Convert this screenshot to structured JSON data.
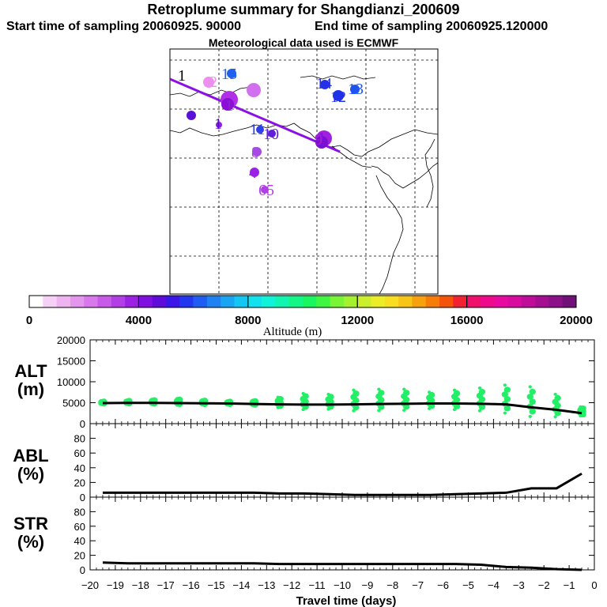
{
  "header": {
    "title": "Retroplume summary for Shangdianzi_200609",
    "start_label": "Start time of sampling 20060925. 90000",
    "end_label": "End time of sampling 20060925.120000",
    "met_label": "Meteorological data used is ECMWF"
  },
  "colorbar": {
    "tick_labels": [
      "0",
      "4000",
      "8000",
      "12000",
      "16000",
      "20000"
    ],
    "axis_label": "Altitude (m)",
    "colors": [
      "#ffffff",
      "#f6d0f6",
      "#efb3ef",
      "#e495ee",
      "#d878ec",
      "#c75ae9",
      "#b33ee6",
      "#9b22e3",
      "#8010e0",
      "#5f0bd9",
      "#3a17e8",
      "#2238f0",
      "#1f5cf2",
      "#1f82f3",
      "#18a6f4",
      "#12c8f2",
      "#10e3ee",
      "#0ff3d8",
      "#10f6b0",
      "#12f785",
      "#18f660",
      "#3ff740",
      "#78f534",
      "#a4f22e",
      "#cbef2a",
      "#eced26",
      "#f8de1e",
      "#f8c416",
      "#f8a10e",
      "#f87c08",
      "#f5520a",
      "#f22233",
      "#f00f6a",
      "#ef0a8b",
      "#e80aa0",
      "#d80a9f",
      "#c00c9a",
      "#a60e91",
      "#8c1088",
      "#701078"
    ]
  },
  "map": {
    "labels": [
      {
        "text": "1",
        "color": "#000000"
      },
      {
        "text": "2",
        "color": "#ee8fee"
      },
      {
        "text": "15",
        "color": "#2060ef"
      },
      {
        "text": "1",
        "color": "#d070ee"
      },
      {
        "text": "14",
        "color": "#2530e8"
      },
      {
        "text": "13",
        "color": "#1e55ee"
      },
      {
        "text": "12",
        "color": "#2030e8"
      },
      {
        "text": "1",
        "color": "#9020d8"
      },
      {
        "text": "1",
        "color": "#7a10d0"
      },
      {
        "text": "1",
        "color": "#8a10d8"
      },
      {
        "text": "1",
        "color": "#5010c8"
      },
      {
        "text": "11",
        "color": "#3040e8"
      },
      {
        "text": "10",
        "color": "#6020d8"
      },
      {
        "text": "9",
        "color": "#a020e0"
      },
      {
        "text": "8",
        "color": "#a64ae6"
      },
      {
        "text": "4",
        "color": "#9b22e3"
      },
      {
        "text": "65",
        "color": "#b040e6"
      }
    ]
  },
  "panels": {
    "alt": {
      "label_line1": "ALT",
      "label_line2": "(m)"
    },
    "abl": {
      "label_line1": "ABL",
      "label_line2": "(%)"
    },
    "str": {
      "label_line1": "STR",
      "label_line2": "(%)"
    }
  },
  "xaxis": {
    "label": "Travel time (days)"
  },
  "chart_data": [
    {
      "type": "line",
      "title": "ALT",
      "ylabel": "ALT (m)",
      "xlabel": "Travel time (days)",
      "xlim": [
        -20,
        0
      ],
      "ylim": [
        0,
        20000
      ],
      "x_ticks": [
        "-20",
        "-19",
        "-18",
        "-17",
        "-16",
        "-15",
        "-14",
        "-13",
        "-12",
        "-11",
        "-10",
        "-9",
        "-8",
        "-7",
        "-6",
        "-5",
        "-4",
        "-3",
        "-2",
        "-1",
        "0"
      ],
      "y_ticks": [
        "0",
        "5000",
        "10000",
        "15000",
        "20000"
      ],
      "x": [
        -19.5,
        -18.5,
        -17.5,
        -16.5,
        -15.5,
        -14.5,
        -13.5,
        -12.5,
        -11.5,
        -10.5,
        -9.5,
        -8.5,
        -7.5,
        -6.5,
        -5.5,
        -4.5,
        -3.5,
        -2.5,
        -1.5,
        -0.5
      ],
      "mean_altitude": [
        4900,
        4950,
        4950,
        4900,
        4850,
        4800,
        4700,
        4600,
        4550,
        4550,
        4600,
        4700,
        4750,
        4800,
        4800,
        4750,
        4600,
        3900,
        3300,
        2500
      ],
      "scatter_spread_max": [
        5400,
        5600,
        5800,
        6000,
        5700,
        5400,
        5600,
        6300,
        7200,
        7000,
        8000,
        8200,
        8200,
        7500,
        8000,
        8500,
        9200,
        8800,
        7000,
        4000
      ]
    },
    {
      "type": "line",
      "title": "ABL",
      "ylabel": "ABL (%)",
      "xlim": [
        -20,
        0
      ],
      "ylim": [
        0,
        100
      ],
      "y_ticks": [
        "0",
        "20",
        "40",
        "60",
        "80"
      ],
      "x": [
        -19.5,
        -18.5,
        -17.5,
        -16.5,
        -15.5,
        -14.5,
        -13.5,
        -12.5,
        -11.5,
        -10.5,
        -9.5,
        -8.5,
        -7.5,
        -6.5,
        -5.5,
        -4.5,
        -3.5,
        -2.5,
        -1.5,
        -0.5
      ],
      "values": [
        6,
        6,
        6,
        6,
        6,
        6,
        6,
        5,
        5,
        4,
        3,
        3,
        3,
        3,
        4,
        5,
        6,
        12,
        12,
        32
      ]
    },
    {
      "type": "line",
      "title": "STR",
      "ylabel": "STR (%)",
      "xlim": [
        -20,
        0
      ],
      "ylim": [
        0,
        100
      ],
      "y_ticks": [
        "0",
        "20",
        "40",
        "60",
        "80"
      ],
      "x": [
        -19.5,
        -18.5,
        -17.5,
        -16.5,
        -15.5,
        -14.5,
        -13.5,
        -12.5,
        -11.5,
        -10.5,
        -9.5,
        -8.5,
        -7.5,
        -6.5,
        -5.5,
        -4.5,
        -3.5,
        -2.5,
        -1.5,
        -0.5
      ],
      "values": [
        10,
        9,
        9,
        9,
        9,
        9,
        9,
        8,
        8,
        8,
        8,
        8,
        8,
        8,
        8,
        7,
        4,
        3,
        1,
        0
      ]
    }
  ]
}
